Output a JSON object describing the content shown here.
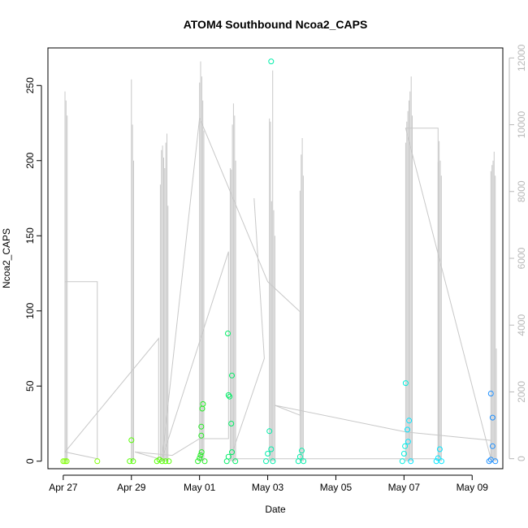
{
  "chart_data": {
    "type": "scatter",
    "title": "ATOM4 Southbound Ncoa2_CAPS",
    "xlabel": "Date",
    "ylabel": "Ncoa2_CAPS",
    "x_ticks": [
      "Apr 27",
      "Apr 29",
      "May 01",
      "May 03",
      "May 05",
      "May 07",
      "May 09"
    ],
    "x_tick_days": [
      0,
      2,
      4,
      6,
      8,
      10,
      12
    ],
    "xlim": [
      -0.45,
      12.9
    ],
    "ylim": [
      -5,
      275
    ],
    "y_ticks": [
      0,
      50,
      100,
      150,
      200,
      250
    ],
    "y2lim": [
      -300,
      12300
    ],
    "y2_ticks": [
      0,
      2000,
      4000,
      6000,
      8000,
      10000,
      12000
    ],
    "grid": false,
    "colors": {
      "line": "#c8c8c8",
      "right_axis": "#b8b8b8",
      "points": [
        "#7fff00",
        "#55ff00",
        "#22ee22",
        "#00ee66",
        "#00eeaa",
        "#00eedd",
        "#00e5ff",
        "#1e90ff"
      ]
    },
    "bursts": [
      {
        "day": 0.05,
        "heights": [
          246,
          240,
          230
        ]
      },
      {
        "day": 2.0,
        "heights": [
          254,
          224,
          200
        ]
      },
      {
        "day": 2.85,
        "heights": [
          184,
          207,
          210,
          202,
          195,
          212,
          218,
          170
        ]
      },
      {
        "day": 4.0,
        "heights": [
          252,
          266,
          256,
          240,
          220
        ]
      },
      {
        "day": 4.9,
        "heights": [
          195,
          194,
          224,
          238,
          230,
          200
        ]
      },
      {
        "day": 6.05,
        "heights": [
          228,
          226,
          173,
          260,
          167,
          150
        ]
      },
      {
        "day": 6.95,
        "heights": [
          180,
          204,
          215,
          190
        ]
      },
      {
        "day": 10.05,
        "heights": [
          212,
          226,
          233,
          240,
          246,
          256,
          230
        ]
      },
      {
        "day": 11.0,
        "heights": [
          199,
          213,
          200,
          190
        ]
      },
      {
        "day": 12.55,
        "heights": [
          193,
          197,
          200,
          206,
          190,
          75
        ]
      }
    ],
    "connector_series_y2": [
      {
        "day": 0.05,
        "y2": 5300
      },
      {
        "day": 1.0,
        "y2": 5300
      },
      {
        "day": 1.0,
        "y2": 0
      },
      {
        "day": 0.05,
        "y2": 200
      },
      {
        "day": 2.8,
        "y2": 3600
      },
      {
        "day": 2.8,
        "y2": 0
      },
      {
        "day": 2.1,
        "y2": 200
      },
      {
        "day": 3.2,
        "y2": 100
      },
      {
        "day": 4.0,
        "y2": 600
      },
      {
        "day": 4.85,
        "y2": 600
      },
      {
        "day": 4.85,
        "y2": 6200
      },
      {
        "day": 2.9,
        "y2": 0
      },
      {
        "day": 4.0,
        "y2": 10200
      },
      {
        "day": 6.0,
        "y2": 5300
      },
      {
        "day": 6.95,
        "y2": 4400
      },
      {
        "day": 6.95,
        "y2": 1300
      },
      {
        "day": 6.2,
        "y2": 1600
      },
      {
        "day": 10.05,
        "y2": 800
      },
      {
        "day": 12.55,
        "y2": 550
      },
      {
        "day": 12.55,
        "y2": 0
      },
      {
        "day": 10.05,
        "y2": 9900
      },
      {
        "day": 11.0,
        "y2": 9900
      },
      {
        "day": 11.0,
        "y2": 0
      },
      {
        "day": 4.9,
        "y2": 0
      },
      {
        "day": 5.9,
        "y2": 3000
      },
      {
        "day": 5.6,
        "y2": 7800
      }
    ],
    "points": [
      {
        "day": 0.0,
        "y": 0,
        "c": 0
      },
      {
        "day": 0.05,
        "y": 0,
        "c": 0
      },
      {
        "day": 0.1,
        "y": 0,
        "c": 0
      },
      {
        "day": 1.0,
        "y": 0,
        "c": 0
      },
      {
        "day": 1.95,
        "y": 0,
        "c": 1
      },
      {
        "day": 2.0,
        "y": 14,
        "c": 1
      },
      {
        "day": 2.05,
        "y": 0,
        "c": 1
      },
      {
        "day": 2.75,
        "y": 0,
        "c": 1
      },
      {
        "day": 2.82,
        "y": 1,
        "c": 1
      },
      {
        "day": 2.9,
        "y": 0,
        "c": 1
      },
      {
        "day": 3.0,
        "y": 0,
        "c": 1
      },
      {
        "day": 3.1,
        "y": 0,
        "c": 1
      },
      {
        "day": 3.95,
        "y": 0,
        "c": 2
      },
      {
        "day": 4.0,
        "y": 2,
        "c": 2
      },
      {
        "day": 4.03,
        "y": 4,
        "c": 2
      },
      {
        "day": 4.06,
        "y": 6,
        "c": 2
      },
      {
        "day": 4.05,
        "y": 17,
        "c": 2
      },
      {
        "day": 4.05,
        "y": 23,
        "c": 2
      },
      {
        "day": 4.08,
        "y": 35,
        "c": 2
      },
      {
        "day": 4.1,
        "y": 38,
        "c": 2
      },
      {
        "day": 4.15,
        "y": 0,
        "c": 2
      },
      {
        "day": 4.8,
        "y": 0,
        "c": 3
      },
      {
        "day": 4.85,
        "y": 3,
        "c": 3
      },
      {
        "day": 4.85,
        "y": 44,
        "c": 3
      },
      {
        "day": 4.88,
        "y": 43,
        "c": 3
      },
      {
        "day": 4.83,
        "y": 85,
        "c": 3
      },
      {
        "day": 4.95,
        "y": 57,
        "c": 3
      },
      {
        "day": 4.93,
        "y": 25,
        "c": 3
      },
      {
        "day": 4.95,
        "y": 6,
        "c": 3
      },
      {
        "day": 5.05,
        "y": 0,
        "c": 3
      },
      {
        "day": 5.95,
        "y": 0,
        "c": 4
      },
      {
        "day": 6.0,
        "y": 5,
        "c": 4
      },
      {
        "day": 6.05,
        "y": 20,
        "c": 4
      },
      {
        "day": 6.1,
        "y": 8,
        "c": 4
      },
      {
        "day": 6.1,
        "y": 266,
        "c": 4
      },
      {
        "day": 6.15,
        "y": 0,
        "c": 4
      },
      {
        "day": 6.9,
        "y": 0,
        "c": 4
      },
      {
        "day": 6.95,
        "y": 3,
        "c": 4
      },
      {
        "day": 7.0,
        "y": 7,
        "c": 4
      },
      {
        "day": 7.05,
        "y": 0,
        "c": 4
      },
      {
        "day": 9.95,
        "y": 0,
        "c": 5
      },
      {
        "day": 10.0,
        "y": 5,
        "c": 5
      },
      {
        "day": 10.03,
        "y": 10,
        "c": 5
      },
      {
        "day": 10.05,
        "y": 52,
        "c": 5
      },
      {
        "day": 10.15,
        "y": 27,
        "c": 6
      },
      {
        "day": 10.1,
        "y": 21,
        "c": 6
      },
      {
        "day": 10.12,
        "y": 13,
        "c": 6
      },
      {
        "day": 10.2,
        "y": 0,
        "c": 6
      },
      {
        "day": 10.95,
        "y": 0,
        "c": 6
      },
      {
        "day": 11.0,
        "y": 2,
        "c": 6
      },
      {
        "day": 11.05,
        "y": 8,
        "c": 6
      },
      {
        "day": 11.1,
        "y": 0,
        "c": 6
      },
      {
        "day": 12.5,
        "y": 0,
        "c": 7
      },
      {
        "day": 12.55,
        "y": 1,
        "c": 7
      },
      {
        "day": 12.55,
        "y": 45,
        "c": 7
      },
      {
        "day": 12.6,
        "y": 29,
        "c": 7
      },
      {
        "day": 12.6,
        "y": 10,
        "c": 7
      },
      {
        "day": 12.68,
        "y": 0,
        "c": 7
      }
    ]
  }
}
